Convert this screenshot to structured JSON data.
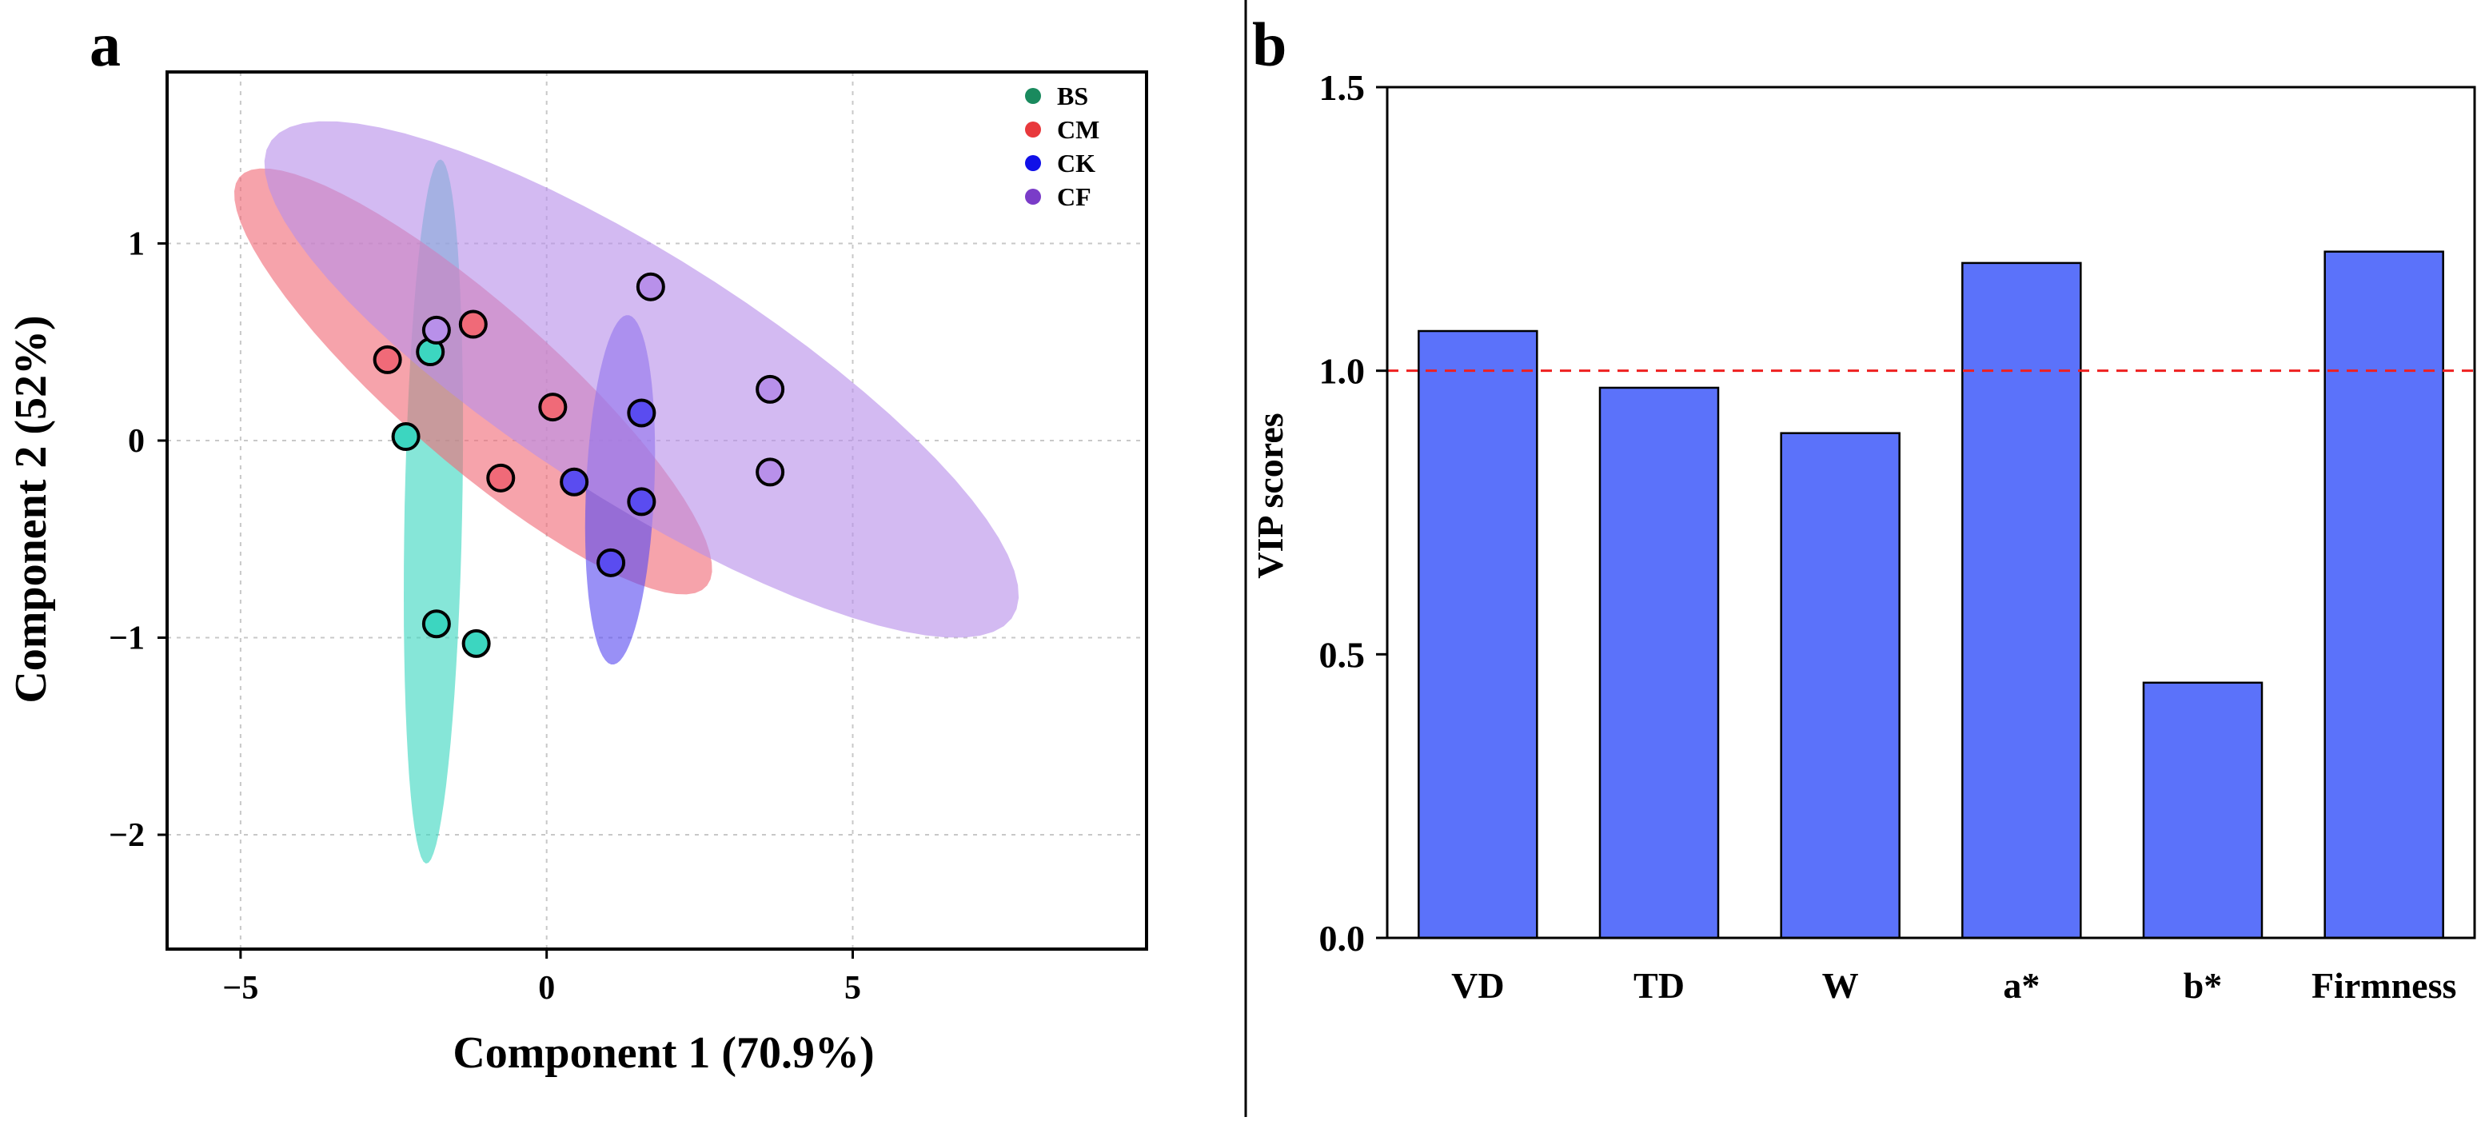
{
  "colors": {
    "bs": "#1a8a5e",
    "bs_fill": "#3cd6c0",
    "cm": "#e8383c",
    "cm_fill": "#f06a78",
    "ck": "#1010e8",
    "ck_fill": "#5a4cf0",
    "cf": "#7a3cc8",
    "cf_fill": "#b890ea",
    "bar": "#5b72fa",
    "threshold": "#ee2020",
    "grid": "#c8c8c8"
  },
  "chart_data": [
    {
      "type": "scatter",
      "panel_label": "a",
      "xlabel": "Component 1 (70.9%)",
      "ylabel": "Component 2 (52%)",
      "xlim": [
        -6.2,
        9.8
      ],
      "ylim": [
        -2.58,
        1.87
      ],
      "xticks": [
        -5,
        0,
        5
      ],
      "yticks": [
        -2,
        -1,
        0,
        1
      ],
      "grid": true,
      "legend_position": "top-right",
      "series": [
        {
          "name": "BS",
          "color_key": "bs",
          "fill_key": "bs_fill",
          "x": [
            -1.9,
            -2.3,
            -1.8,
            -1.15
          ],
          "y": [
            0.45,
            0.02,
            -0.93,
            -1.03
          ],
          "ellipse": {
            "cx": -1.85,
            "cy": -0.36,
            "rx": 1.79,
            "ry": 0.47,
            "angle_deg": 86.1
          }
        },
        {
          "name": "CM",
          "color_key": "cm",
          "fill_key": "cm_fill",
          "x": [
            -2.6,
            -1.2,
            0.1,
            -0.75
          ],
          "y": [
            0.41,
            0.59,
            0.17,
            -0.19
          ],
          "ellipse": {
            "cx": -1.2,
            "cy": 0.3,
            "rx": 4.02,
            "ry": 0.5,
            "angle_deg": -13.9
          }
        },
        {
          "name": "CK",
          "color_key": "ck",
          "fill_key": "ck_fill",
          "x": [
            1.55,
            0.45,
            1.55,
            1.05
          ],
          "y": [
            0.14,
            -0.21,
            -0.31,
            -0.62
          ],
          "ellipse": {
            "cx": 1.2,
            "cy": -0.25,
            "rx": 0.9,
            "ry": 0.55,
            "angle_deg": 77.5
          }
        },
        {
          "name": "CF",
          "color_key": "cf",
          "fill_key": "cf_fill",
          "x": [
            -1.8,
            1.7,
            3.65,
            3.65
          ],
          "y": [
            0.56,
            0.78,
            0.26,
            -0.16
          ],
          "ellipse": {
            "cx": 1.55,
            "cy": 0.31,
            "rx": 6.26,
            "ry": 0.71,
            "angle_deg": -10.2
          }
        }
      ]
    },
    {
      "type": "bar",
      "panel_label": "b",
      "categories": [
        "VD",
        "TD",
        "W",
        "a*",
        "b*",
        "Firmness"
      ],
      "values": [
        1.07,
        0.97,
        0.89,
        1.19,
        0.45,
        1.21
      ],
      "ylabel": "VIP scores",
      "xlabel": "",
      "ylim": [
        0,
        1.5
      ],
      "yticks": [
        "0.0",
        "0.5",
        "1.0",
        "1.5"
      ],
      "threshold": 1.0
    }
  ]
}
